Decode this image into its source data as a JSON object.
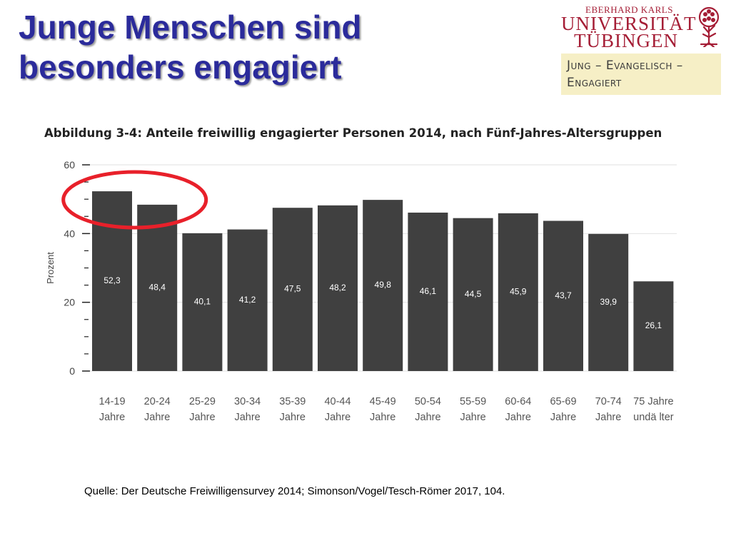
{
  "slide": {
    "title_line1": "Junge Menschen sind",
    "title_line2": "besonders engagiert",
    "title_color": "#2b2b9b"
  },
  "logo": {
    "line1": "EBERHARD KARLS",
    "line2": "UNIVERSITÄT",
    "line3": "TÜBINGEN",
    "color": "#a51e36",
    "icon": "tree-icon"
  },
  "project": {
    "line1": "Jung – Evangelisch –",
    "line2": "Engagiert",
    "background": "#f6efc6"
  },
  "chart_data": {
    "type": "bar",
    "title": "Abbildung 3-4: Anteile freiwillig engagierter Personen 2014, nach Fünf-Jahres-Altersgruppen",
    "ylabel": "Prozent",
    "xlabel": "",
    "ylim": [
      0,
      60
    ],
    "yticks": [
      0,
      20,
      40,
      60
    ],
    "grid": true,
    "categories": [
      [
        "14-19",
        "Jahre"
      ],
      [
        "20-24",
        "Jahre"
      ],
      [
        "25-29",
        "Jahre"
      ],
      [
        "30-34",
        "Jahre"
      ],
      [
        "35-39",
        "Jahre"
      ],
      [
        "40-44",
        "Jahre"
      ],
      [
        "45-49",
        "Jahre"
      ],
      [
        "50-54",
        "Jahre"
      ],
      [
        "55-59",
        "Jahre"
      ],
      [
        "60-64",
        "Jahre"
      ],
      [
        "65-69",
        "Jahre"
      ],
      [
        "70-74",
        "Jahre"
      ],
      [
        "75 Jahre",
        "undä lter"
      ]
    ],
    "values": [
      52.3,
      48.4,
      40.1,
      41.2,
      47.5,
      48.2,
      49.8,
      46.1,
      44.5,
      45.9,
      43.7,
      39.9,
      26.1
    ],
    "value_labels": [
      "52,3",
      "48,4",
      "40,1",
      "41,2",
      "47,5",
      "48,2",
      "49,8",
      "46,1",
      "44,5",
      "45,9",
      "43,7",
      "39,9",
      "26,1"
    ],
    "bar_color": "#404040",
    "annotation": {
      "shape": "ellipse",
      "color": "#e8202a",
      "highlights": [
        "14-19",
        "20-24"
      ]
    }
  },
  "source": "Quelle: Der Deutsche Freiwilligensurvey 2014; Simonson/Vogel/Tesch-Römer 2017, 104."
}
